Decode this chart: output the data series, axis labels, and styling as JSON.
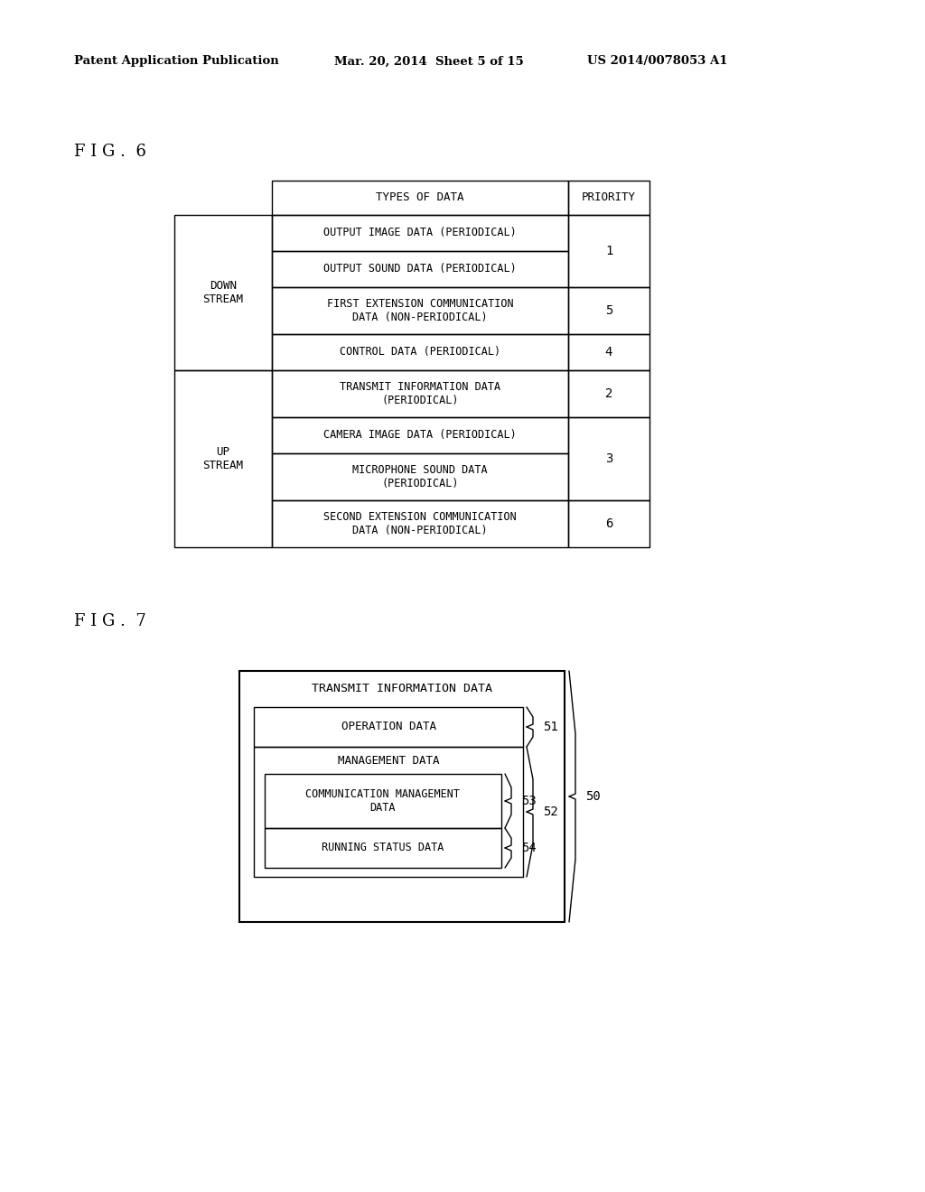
{
  "bg_color": "#ffffff",
  "header_left": "Patent Application Publication",
  "header_mid": "Mar. 20, 2014  Sheet 5 of 15",
  "header_right": "US 2014/0078053 A1",
  "fig6_label": "F I G .  6",
  "fig7_label": "F I G .  7",
  "table": {
    "col2_header": "TYPES OF DATA",
    "col3_header": "PRIORITY",
    "rows": [
      {
        "data_type": "OUTPUT IMAGE DATA (PERIODICAL)"
      },
      {
        "data_type": "OUTPUT SOUND DATA (PERIODICAL)"
      },
      {
        "data_type": "FIRST EXTENSION COMMUNICATION\nDATA (NON-PERIODICAL)"
      },
      {
        "data_type": "CONTROL DATA (PERIODICAL)"
      },
      {
        "data_type": "TRANSMIT INFORMATION DATA\n(PERIODICAL)"
      },
      {
        "data_type": "CAMERA IMAGE DATA (PERIODICAL)"
      },
      {
        "data_type": "MICROPHONE SOUND DATA\n(PERIODICAL)"
      },
      {
        "data_type": "SECOND EXTENSION COMMUNICATION\nDATA (NON-PERIODICAL)"
      }
    ],
    "priority_groups": [
      {
        "rows": [
          0,
          1
        ],
        "val": "1"
      },
      {
        "rows": [
          2
        ],
        "val": "5"
      },
      {
        "rows": [
          3
        ],
        "val": "4"
      },
      {
        "rows": [
          4
        ],
        "val": "2"
      },
      {
        "rows": [
          5,
          6
        ],
        "val": "3"
      },
      {
        "rows": [
          7
        ],
        "val": "6"
      }
    ],
    "down_rows": [
      0,
      1,
      2,
      3
    ],
    "up_rows": [
      4,
      5,
      6,
      7
    ],
    "down_label": "DOWN\nSTREAM",
    "up_label": "UP\nSTREAM"
  },
  "fig7": {
    "outer_label": "TRANSMIT INFORMATION DATA",
    "outer_number": "50",
    "op_label": "OPERATION DATA",
    "op_number": "51",
    "mgmt_label": "MANAGEMENT DATA",
    "mgmt_number": "52",
    "comm_label": "COMMUNICATION MANAGEMENT\nDATA",
    "comm_number": "53",
    "run_label": "RUNNING STATUS DATA",
    "run_number": "54"
  }
}
